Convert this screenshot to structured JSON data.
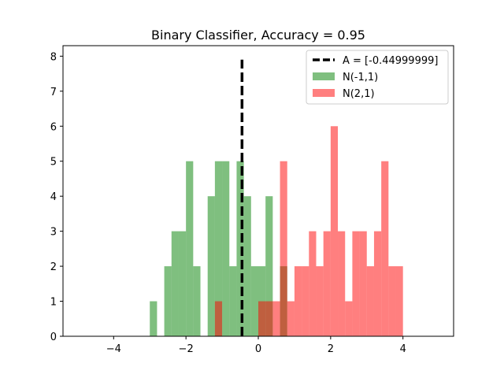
{
  "chart_data": {
    "type": "bar",
    "title": "Binary Classifier, Accuracy = 0.95",
    "xlabel": "",
    "ylabel": "",
    "xlim": [
      -5.4,
      5.4
    ],
    "ylim": [
      0,
      8.3
    ],
    "xticks": [
      -4,
      -2,
      0,
      2,
      4
    ],
    "yticks": [
      0,
      1,
      2,
      3,
      4,
      5,
      6,
      7,
      8
    ],
    "xtick_labels": [
      "−4",
      "−2",
      "0",
      "2",
      "4"
    ],
    "ytick_labels": [
      "0",
      "1",
      "2",
      "3",
      "4",
      "5",
      "6",
      "7",
      "8"
    ],
    "grid": false,
    "legend_position": "top-right",
    "threshold": {
      "name": "A = [-0.44999999]",
      "x": -0.45,
      "y_range": [
        0,
        7.9
      ],
      "color": "#000000",
      "style": "dashed"
    },
    "series": [
      {
        "name": "N(-1,1)",
        "color": "#008000",
        "opacity": 0.5,
        "bin_edges": [
          -3.0,
          -2.8,
          -2.6,
          -2.4,
          -2.2,
          -2.0,
          -1.8,
          -1.6,
          -1.4,
          -1.2,
          -1.0,
          -0.8,
          -0.6,
          -0.4,
          -0.2,
          0.0,
          0.2,
          0.4,
          0.6,
          0.8
        ],
        "values": [
          1,
          0,
          2,
          3,
          3,
          5,
          2,
          0,
          4,
          5,
          5,
          2,
          5,
          4,
          2,
          2,
          4,
          0,
          2
        ]
      },
      {
        "name": "N(2,1)",
        "color": "#ff0000",
        "opacity": 0.5,
        "bin_edges": [
          -1.2,
          -1.0,
          -0.8,
          -0.6,
          -0.4,
          -0.2,
          0.0,
          0.2,
          0.4,
          0.6,
          0.8,
          1.0,
          1.2,
          1.4,
          1.6,
          1.8,
          2.0,
          2.2,
          2.4,
          2.6,
          2.8,
          3.0,
          3.2,
          3.4,
          3.6,
          3.8,
          4.0
        ],
        "values": [
          1,
          0,
          0,
          0,
          0,
          0,
          1,
          1,
          1,
          5,
          1,
          2,
          2,
          3,
          2,
          3,
          6,
          3,
          1,
          3,
          3,
          2,
          3,
          5,
          2,
          2
        ]
      }
    ]
  }
}
